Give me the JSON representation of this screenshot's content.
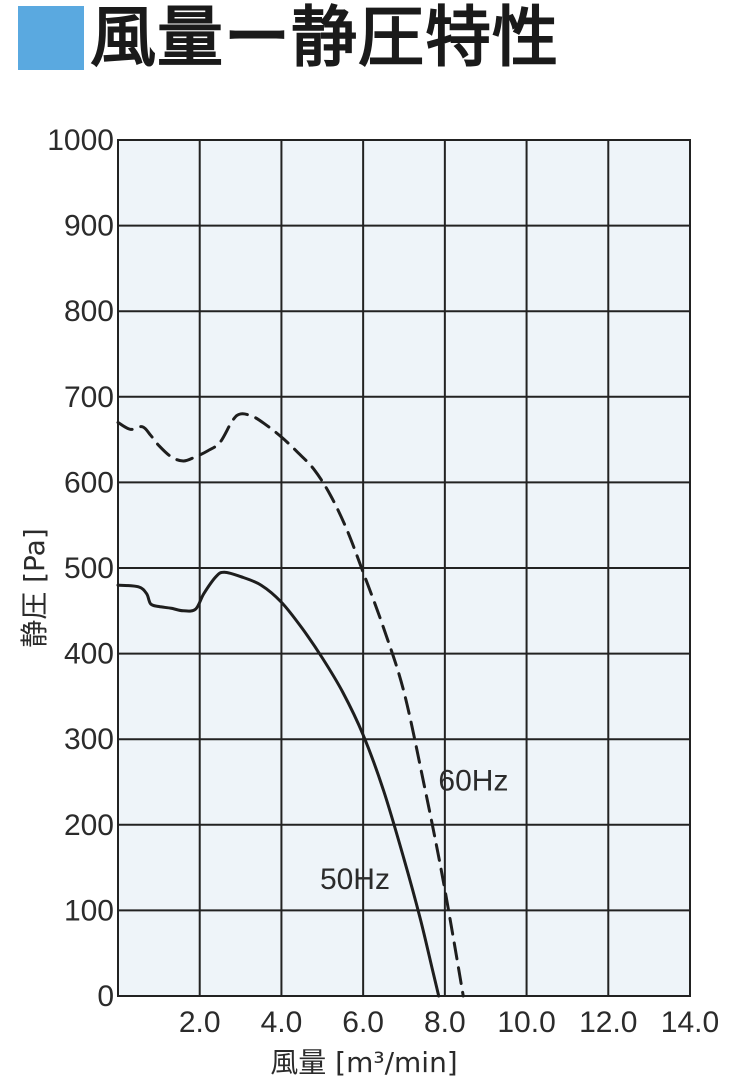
{
  "title": "風量ー静圧特性",
  "accent_color": "#5aa9e0",
  "chart_data": {
    "type": "line",
    "xlabel": "風量 [m³/min]",
    "ylabel": "静圧 [Pa]",
    "xlim": [
      0,
      14
    ],
    "ylim": [
      0,
      1000
    ],
    "x_ticks": [
      2,
      4,
      6,
      8,
      10,
      12,
      14
    ],
    "x_tick_labels": [
      "2.0",
      "4.0",
      "6.0",
      "8.0",
      "10.0",
      "12.0",
      "14.0"
    ],
    "y_ticks": [
      0,
      100,
      200,
      300,
      400,
      500,
      600,
      700,
      800,
      900,
      1000
    ],
    "y_tick_labels": [
      "0",
      "100",
      "200",
      "300",
      "400",
      "500",
      "600",
      "700",
      "800",
      "900",
      "1000"
    ],
    "grid": true,
    "plot_background": "#eef4f9",
    "series": [
      {
        "name": "50Hz",
        "style": "solid",
        "x": [
          0,
          0.5,
          0.7,
          0.8,
          1.0,
          1.3,
          1.6,
          1.9,
          2.1,
          2.4,
          2.6,
          3.0,
          3.5,
          4.0,
          4.5,
          5.0,
          5.5,
          6.0,
          6.5,
          7.0,
          7.4,
          7.7,
          7.85
        ],
        "y": [
          480,
          478,
          470,
          458,
          455,
          453,
          450,
          452,
          470,
          490,
          495,
          490,
          480,
          460,
          430,
          395,
          355,
          305,
          240,
          160,
          90,
          30,
          0
        ]
      },
      {
        "name": "60Hz",
        "style": "dashed",
        "x": [
          0,
          0.3,
          0.6,
          0.8,
          1.0,
          1.3,
          1.6,
          1.9,
          2.2,
          2.5,
          2.8,
          3.0,
          3.3,
          3.6,
          4.0,
          4.4,
          4.8,
          5.2,
          5.6,
          6.0,
          6.5,
          7.0,
          7.5,
          7.9,
          8.2,
          8.45
        ],
        "y": [
          670,
          662,
          665,
          655,
          643,
          630,
          625,
          630,
          637,
          647,
          672,
          680,
          677,
          668,
          653,
          635,
          615,
          585,
          545,
          495,
          430,
          355,
          245,
          150,
          70,
          0
        ]
      }
    ],
    "annotations": [
      {
        "text": "50Hz",
        "x": 5.8,
        "y": 125
      },
      {
        "text": "60Hz",
        "x": 8.7,
        "y": 240
      }
    ]
  }
}
